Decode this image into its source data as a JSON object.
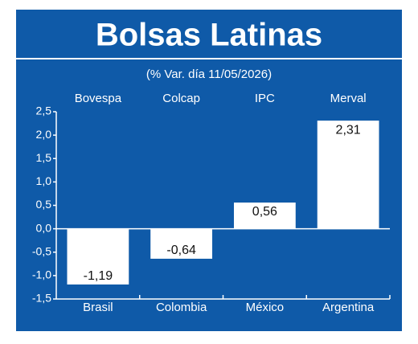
{
  "chart_data": {
    "type": "bar",
    "title": "Bolsas Latinas",
    "subtitle": "(% Var. día 11/05/2026)",
    "index_names": [
      "Bovespa",
      "Colcap",
      "IPC",
      "Merval"
    ],
    "categories": [
      "Brasil",
      "Colombia",
      "México",
      "Argentina"
    ],
    "values": [
      -1.19,
      -0.64,
      0.56,
      2.31
    ],
    "value_labels": [
      "-1,19",
      "-0,64",
      "0,56",
      "2,31"
    ],
    "color": "#ffffff",
    "ylim": [
      -1.5,
      2.5
    ],
    "yticks": [
      {
        "value": -1.5,
        "label": "-1,5"
      },
      {
        "value": -1.0,
        "label": "-1,0"
      },
      {
        "value": -0.5,
        "label": "-0,5"
      },
      {
        "value": 0,
        "label": "0,0"
      },
      {
        "value": 0.5,
        "label": "0,5"
      },
      {
        "value": 1.0,
        "label": "1,0"
      },
      {
        "value": 1.5,
        "label": "1,5"
      },
      {
        "value": 2.0,
        "label": "2,0"
      },
      {
        "value": 2.5,
        "label": "2,5"
      }
    ]
  }
}
